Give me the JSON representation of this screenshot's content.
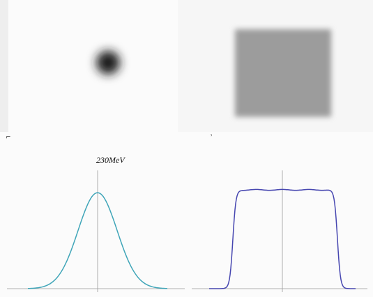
{
  "annotation": {
    "energy": "230MeV"
  }
}
